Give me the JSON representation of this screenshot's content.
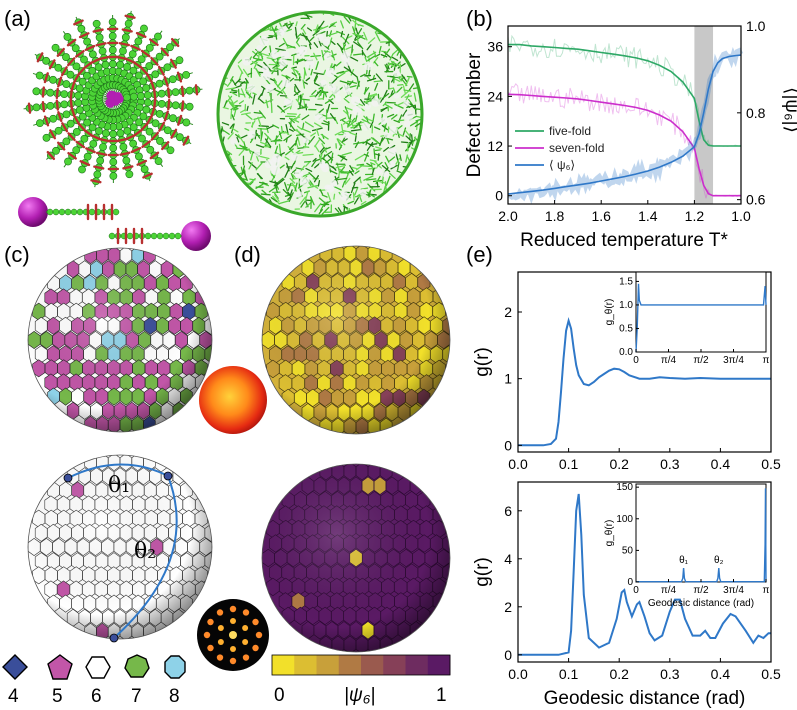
{
  "panel_labels": [
    "(a)",
    "(b)",
    "(c)",
    "(d)",
    "(e)"
  ],
  "colors": {
    "green": "#2ea866",
    "magenta": "#cc2ecc",
    "blue": "#2f78c8",
    "bead_green": "#4cd436",
    "bead_magenta": "#b21fb2",
    "coord4": "#3a4e9a",
    "coord5": "#c256a8",
    "coord6": "#ffffff",
    "coord7": "#76b84a",
    "coord8": "#8ed2e8"
  },
  "coordination_legend": {
    "items": [
      {
        "label": "4",
        "shape": "diamond"
      },
      {
        "label": "5",
        "shape": "pentagon"
      },
      {
        "label": "6",
        "shape": "hexagon"
      },
      {
        "label": "7",
        "shape": "heptagon"
      },
      {
        "label": "8",
        "shape": "octagon"
      }
    ]
  },
  "sphere_labels": {
    "theta1": "θ₁",
    "theta2": "θ₂"
  },
  "colorbar": {
    "min_label": "0",
    "max_label": "1",
    "title": "|ψ₆|",
    "colors": [
      "#f2e02a",
      "#dcbe32",
      "#c8a03a",
      "#b07a44",
      "#9a5a4e",
      "#864058",
      "#6e2c60",
      "#5a1a64"
    ]
  },
  "chart_data": [
    {
      "id": "b",
      "type": "line",
      "xlabel": "Reduced temperature T*",
      "ylabel": "Defect number",
      "y2label": "⟨|ψ₆|⟩",
      "xlim": [
        2.0,
        1.0
      ],
      "ylim": [
        -2,
        41
      ],
      "y2lim": [
        0.59,
        1.0
      ],
      "x_ticks": [
        "2.0",
        "1.8",
        "1.6",
        "1.4",
        "1.2",
        "1.0"
      ],
      "y_ticks": [
        "0",
        "12",
        "24",
        "36"
      ],
      "y2_ticks": [
        "0.6",
        "0.8",
        "1.0"
      ],
      "shaded_x_range": [
        1.2,
        1.12
      ],
      "legend": [
        "five-fold",
        "seven-fold",
        "⟨ ψ₆⟩"
      ],
      "x": [
        2.0,
        1.95,
        1.9,
        1.85,
        1.8,
        1.75,
        1.7,
        1.65,
        1.6,
        1.55,
        1.5,
        1.45,
        1.4,
        1.35,
        1.3,
        1.25,
        1.2,
        1.18,
        1.16,
        1.14,
        1.12,
        1.1,
        1.08,
        1.05,
        1.02,
        1.0
      ],
      "series": [
        {
          "name": "five-fold",
          "axis": "left",
          "values": [
            36.5,
            36.5,
            36.2,
            36.0,
            35.8,
            35.6,
            35.4,
            35.0,
            34.6,
            34.2,
            33.8,
            33.3,
            32.6,
            31.5,
            30.0,
            27.5,
            23.5,
            18.0,
            13.5,
            12.2,
            12.0,
            12.0,
            12.0,
            12.0,
            12.0,
            12.0
          ]
        },
        {
          "name": "seven-fold",
          "axis": "left",
          "values": [
            24.5,
            24.4,
            24.2,
            24.0,
            23.8,
            23.6,
            23.4,
            23.0,
            22.6,
            22.2,
            21.8,
            21.3,
            20.6,
            19.5,
            18.0,
            15.5,
            11.5,
            6.5,
            2.5,
            0.5,
            0.0,
            0.0,
            0.0,
            0.0,
            0.0,
            0.0
          ]
        },
        {
          "name": "⟨ ψ₆⟩",
          "axis": "right",
          "values": [
            0.613,
            0.616,
            0.619,
            0.622,
            0.626,
            0.63,
            0.634,
            0.638,
            0.643,
            0.648,
            0.653,
            0.659,
            0.666,
            0.675,
            0.686,
            0.7,
            0.722,
            0.752,
            0.8,
            0.855,
            0.895,
            0.915,
            0.925,
            0.93,
            0.932,
            0.933
          ]
        }
      ]
    },
    {
      "id": "e-top",
      "type": "line",
      "ylabel": "g(r)",
      "xlim": [
        0.0,
        0.5
      ],
      "ylim": [
        -0.1,
        2.6
      ],
      "x_ticks": [
        "0.0",
        "0.1",
        "0.2",
        "0.3",
        "0.4",
        "0.5"
      ],
      "y_ticks": [
        "0",
        "1",
        "2"
      ],
      "x": [
        0.0,
        0.05,
        0.065,
        0.075,
        0.08,
        0.085,
        0.09,
        0.095,
        0.1,
        0.105,
        0.11,
        0.115,
        0.12,
        0.13,
        0.14,
        0.15,
        0.16,
        0.17,
        0.18,
        0.19,
        0.2,
        0.21,
        0.22,
        0.24,
        0.26,
        0.28,
        0.3,
        0.33,
        0.36,
        0.4,
        0.45,
        0.5
      ],
      "series": [
        {
          "name": "g(r)",
          "values": [
            0.0,
            0.0,
            0.02,
            0.1,
            0.35,
            0.8,
            1.3,
            1.72,
            1.87,
            1.75,
            1.45,
            1.2,
            1.05,
            0.92,
            0.9,
            0.95,
            1.02,
            1.07,
            1.12,
            1.15,
            1.14,
            1.1,
            1.05,
            1.0,
            1.0,
            1.02,
            1.01,
            1.0,
            1.01,
            1.0,
            1.0,
            1.0
          ]
        }
      ],
      "inset": {
        "ylabel": "g_θ(r)",
        "xlim": [
          0,
          3.1416
        ],
        "ylim": [
          0,
          1.7
        ],
        "x_ticks": [
          "0",
          "π/4",
          "π/2",
          "3π/4",
          "π"
        ],
        "y_ticks": [
          "0.0",
          "0.5",
          "1.0",
          "1.5"
        ],
        "x": [
          0.0,
          0.03,
          0.06,
          0.08,
          0.12,
          0.2,
          0.5,
          1.0,
          1.5,
          2.0,
          2.5,
          3.0,
          3.08,
          3.12,
          3.1416
        ],
        "values": [
          0.0,
          0.5,
          1.45,
          1.1,
          1.0,
          1.0,
          1.0,
          1.0,
          1.0,
          1.0,
          1.0,
          1.0,
          1.0,
          1.4,
          1.0
        ]
      }
    },
    {
      "id": "e-bottom",
      "type": "line",
      "xlabel": "Geodesic distance (rad)",
      "ylabel": "g(r)",
      "xlim": [
        0.0,
        0.5
      ],
      "ylim": [
        -0.3,
        7.2
      ],
      "x_ticks": [
        "0.0",
        "0.1",
        "0.2",
        "0.3",
        "0.4",
        "0.5"
      ],
      "y_ticks": [
        "0",
        "2",
        "4",
        "6"
      ],
      "x": [
        0.0,
        0.08,
        0.1,
        0.105,
        0.11,
        0.115,
        0.12,
        0.125,
        0.13,
        0.14,
        0.16,
        0.18,
        0.195,
        0.205,
        0.21,
        0.215,
        0.225,
        0.235,
        0.24,
        0.25,
        0.26,
        0.27,
        0.285,
        0.3,
        0.31,
        0.32,
        0.33,
        0.345,
        0.36,
        0.37,
        0.38,
        0.39,
        0.405,
        0.42,
        0.43,
        0.45,
        0.465,
        0.475,
        0.485,
        0.495,
        0.5
      ],
      "series": [
        {
          "name": "g(r)",
          "values": [
            0.0,
            0.0,
            0.1,
            1.0,
            3.5,
            6.0,
            6.7,
            5.0,
            2.5,
            0.7,
            0.3,
            0.5,
            1.5,
            2.6,
            2.7,
            2.2,
            1.6,
            2.1,
            2.2,
            1.6,
            0.9,
            0.6,
            0.8,
            1.8,
            2.3,
            2.3,
            1.5,
            0.8,
            0.8,
            1.0,
            0.7,
            0.7,
            1.3,
            1.7,
            1.6,
            1.0,
            0.5,
            0.8,
            0.7,
            0.9,
            0.9
          ]
        }
      ],
      "inset": {
        "xlabel": "Geodesic distance (rad)",
        "ylabel": "g_θ(r)",
        "xlim": [
          0,
          3.1416
        ],
        "ylim": [
          0,
          155
        ],
        "x_ticks": [
          "0",
          "π/4",
          "π/2",
          "3π/4",
          "π"
        ],
        "y_ticks": [
          "0",
          "50",
          "100",
          "150"
        ],
        "peaks": [
          {
            "x": 1.15,
            "y": 22,
            "label": "θ₁"
          },
          {
            "x": 2.0,
            "y": 22,
            "label": "θ₂"
          },
          {
            "x": 3.13,
            "y": 148,
            "label": ""
          }
        ],
        "x": [
          0.0,
          1.1,
          1.13,
          1.15,
          1.17,
          1.2,
          1.95,
          1.98,
          2.0,
          2.02,
          2.05,
          3.1,
          3.12,
          3.13,
          3.1416
        ],
        "values": [
          0.5,
          0.5,
          6,
          22,
          6,
          0.5,
          0.5,
          6,
          22,
          6,
          0.5,
          0.5,
          60,
          148,
          0.5
        ]
      }
    }
  ]
}
